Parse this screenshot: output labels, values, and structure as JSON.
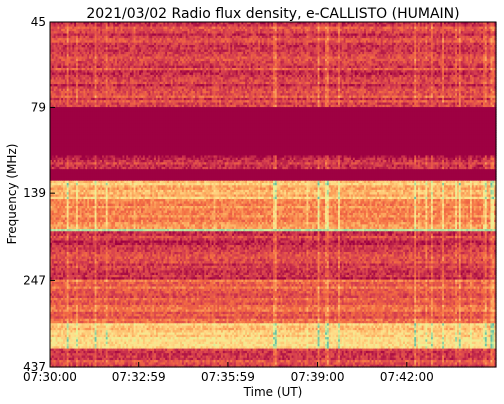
{
  "chart_data": {
    "type": "heatmap",
    "title": "2021/03/02  Radio flux density, e-CALLISTO (HUMAIN)",
    "xlabel": "Time (UT)",
    "ylabel": "Frequency (MHz)",
    "x_ticks": [
      "07:30:00",
      "07:32:59",
      "07:35:59",
      "07:39:00",
      "07:42:00"
    ],
    "y_ticks": [
      "45",
      "79",
      "139",
      "247",
      "437"
    ],
    "x_range": [
      "07:30:00",
      "07:45:00"
    ],
    "y_range": [
      45,
      437
    ],
    "colormap": "Spectral",
    "colors": {
      "low": "#9e0142",
      "mid_low": "#d53e4f",
      "mid": "#f46d43",
      "mid_high": "#fdae61",
      "high": "#fee08b",
      "peak": "#e6f598",
      "max": "#66c2a5"
    },
    "frequency_bands": [
      {
        "f_start": 45,
        "f_end": 70,
        "level": 0.18
      },
      {
        "f_start": 70,
        "f_end": 79,
        "level": 0.22
      },
      {
        "f_start": 79,
        "f_end": 108,
        "level": 0.0
      },
      {
        "f_start": 108,
        "f_end": 118,
        "level": 0.12
      },
      {
        "f_start": 118,
        "f_end": 128,
        "level": 0.0
      },
      {
        "f_start": 128,
        "f_end": 145,
        "level": 0.55
      },
      {
        "f_start": 145,
        "f_end": 175,
        "level": 0.42
      },
      {
        "f_start": 175,
        "f_end": 180,
        "level": 0.9
      },
      {
        "f_start": 180,
        "f_end": 247,
        "level": 0.16
      },
      {
        "f_start": 247,
        "f_end": 330,
        "level": 0.28
      },
      {
        "f_start": 330,
        "f_end": 390,
        "level": 0.62
      },
      {
        "f_start": 390,
        "f_end": 437,
        "level": 0.2
      }
    ]
  }
}
